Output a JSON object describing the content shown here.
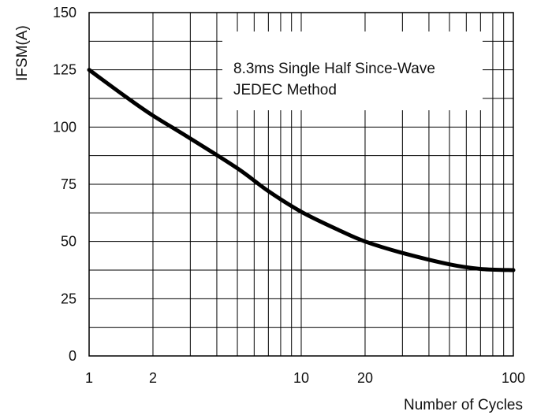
{
  "chart_data": {
    "type": "line",
    "title": "",
    "xlabel": "Number of Cycles",
    "ylabel": "IFSM(A)",
    "x_scale": "log",
    "xlim": [
      1,
      100
    ],
    "ylim": [
      0,
      150
    ],
    "grid": true,
    "x_ticks": [
      1,
      2,
      10,
      20,
      100
    ],
    "x_tick_labels": [
      "1",
      "2",
      "10",
      "20",
      "100"
    ],
    "y_ticks": [
      0,
      25,
      50,
      75,
      100,
      125,
      150
    ],
    "y_tick_labels": [
      "0",
      "25",
      "50",
      "75",
      "100",
      "125",
      "150"
    ],
    "annotation": [
      "8.3ms Single Half Since-Wave",
      "JEDEC Method"
    ],
    "series": [
      {
        "x": [
          1,
          1.5,
          2,
          3,
          5,
          7,
          10,
          15,
          20,
          30,
          50,
          70,
          100
        ],
        "y": [
          125,
          113,
          105,
          95,
          82,
          72,
          63,
          55,
          50,
          45,
          40,
          38,
          37.5
        ],
        "color": "#000000"
      }
    ]
  }
}
